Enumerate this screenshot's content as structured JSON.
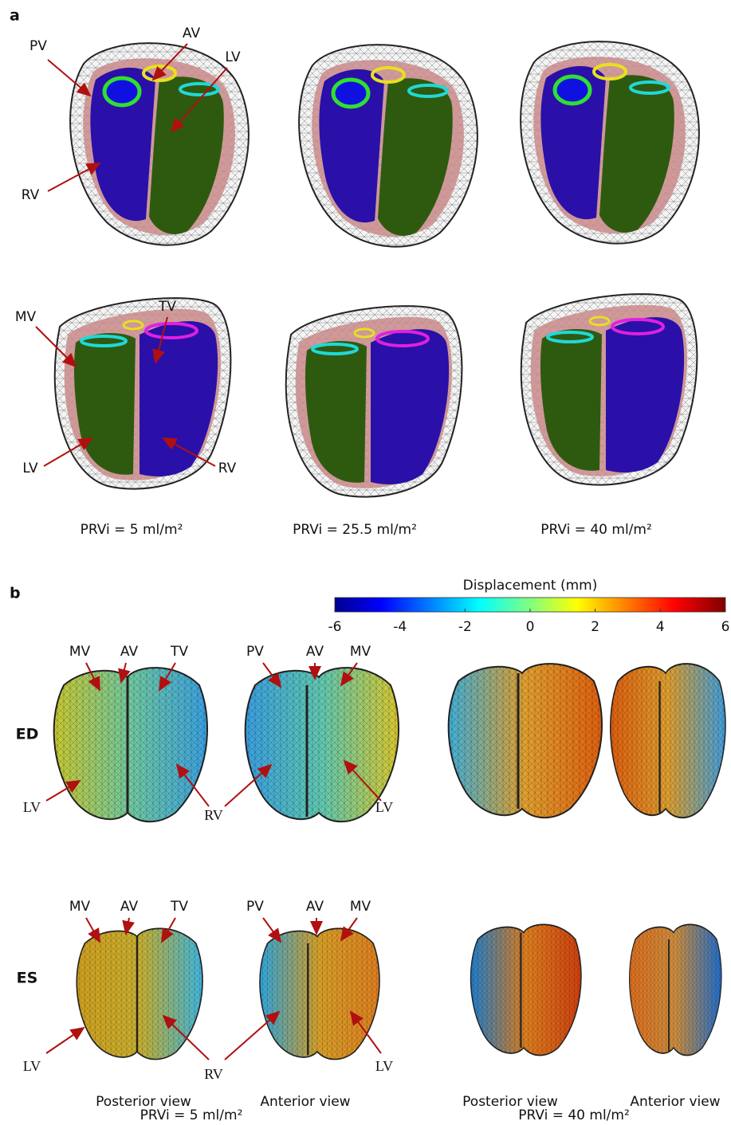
{
  "panel_a": {
    "label": "a",
    "top_labels": [
      "PV",
      "AV",
      "LV",
      "RV"
    ],
    "bottom_labels": [
      "MV",
      "TV",
      "LV",
      "RV"
    ],
    "captions": [
      "PRVi = 5 ml/m²",
      "PRVi = 25.5 ml/m²",
      "PRVi = 40 ml/m²"
    ]
  },
  "panel_b": {
    "label": "b",
    "colorbar": {
      "title": "Displacement (mm)",
      "ticks": [
        -6,
        -4,
        -2,
        0,
        2,
        4,
        6
      ]
    },
    "rows": [
      {
        "label": "ED",
        "labels": [
          "MV",
          "AV",
          "TV",
          "PV",
          "AV",
          "MV",
          "LV",
          "RV",
          "LV"
        ]
      },
      {
        "label": "ES",
        "labels": [
          "MV",
          "AV",
          "TV",
          "PV",
          "AV",
          "MV",
          "LV",
          "RV",
          "LV"
        ]
      }
    ],
    "views": [
      "Posterior view",
      "Anterior view",
      "Posterior view",
      "Anterior view"
    ],
    "captions": [
      "PRVi = 5 ml/m²",
      "PRVi = 40 ml/m²"
    ]
  }
}
